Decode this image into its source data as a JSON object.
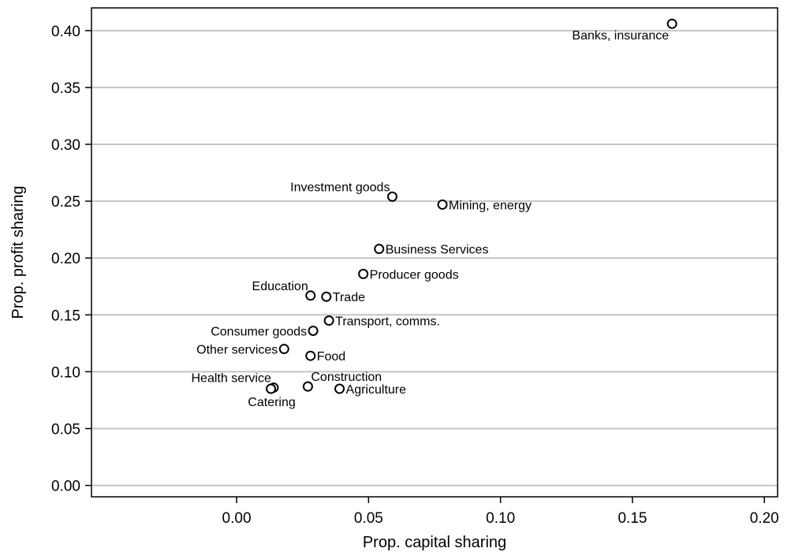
{
  "chart_data": {
    "type": "scatter",
    "title": "",
    "xlabel": "Prop. capital sharing",
    "ylabel": "Prop. profit sharing",
    "xlim": [
      -0.055,
      0.205
    ],
    "ylim": [
      -0.01,
      0.42
    ],
    "xticks": [
      0.0,
      0.05,
      0.1,
      0.15,
      0.2
    ],
    "xtick_labels": [
      "0.00",
      "0.05",
      "0.10",
      "0.15",
      "0.20"
    ],
    "yticks": [
      0.0,
      0.05,
      0.1,
      0.15,
      0.2,
      0.25,
      0.3,
      0.35,
      0.4
    ],
    "ytick_labels": [
      "0.00",
      "0.05",
      "0.10",
      "0.15",
      "0.20",
      "0.25",
      "0.30",
      "0.35",
      "0.40"
    ],
    "grid": "horizontal",
    "marker": "hollow-circle",
    "points": [
      {
        "label": "Banks, insurance",
        "x": 0.165,
        "y": 0.406,
        "pos": "below-left"
      },
      {
        "label": "Investment goods",
        "x": 0.059,
        "y": 0.254,
        "pos": "above-left"
      },
      {
        "label": "Mining, energy",
        "x": 0.078,
        "y": 0.247,
        "pos": "right"
      },
      {
        "label": "Business Services",
        "x": 0.054,
        "y": 0.208,
        "pos": "right"
      },
      {
        "label": "Producer goods",
        "x": 0.048,
        "y": 0.186,
        "pos": "right"
      },
      {
        "label": "Education",
        "x": 0.028,
        "y": 0.167,
        "pos": "above-left"
      },
      {
        "label": "Trade",
        "x": 0.034,
        "y": 0.166,
        "pos": "right"
      },
      {
        "label": "Transport, comms.",
        "x": 0.035,
        "y": 0.145,
        "pos": "right"
      },
      {
        "label": "Consumer goods",
        "x": 0.029,
        "y": 0.136,
        "pos": "left"
      },
      {
        "label": "Other services",
        "x": 0.018,
        "y": 0.12,
        "pos": "left"
      },
      {
        "label": "Food",
        "x": 0.028,
        "y": 0.114,
        "pos": "right"
      },
      {
        "label": "Construction",
        "x": 0.027,
        "y": 0.087,
        "pos": "above-right"
      },
      {
        "label": "Agriculture",
        "x": 0.039,
        "y": 0.085,
        "pos": "right"
      },
      {
        "label": "Health service",
        "x": 0.014,
        "y": 0.086,
        "pos": "above-left"
      },
      {
        "label": "Catering",
        "x": 0.013,
        "y": 0.085,
        "pos": "below"
      }
    ]
  }
}
